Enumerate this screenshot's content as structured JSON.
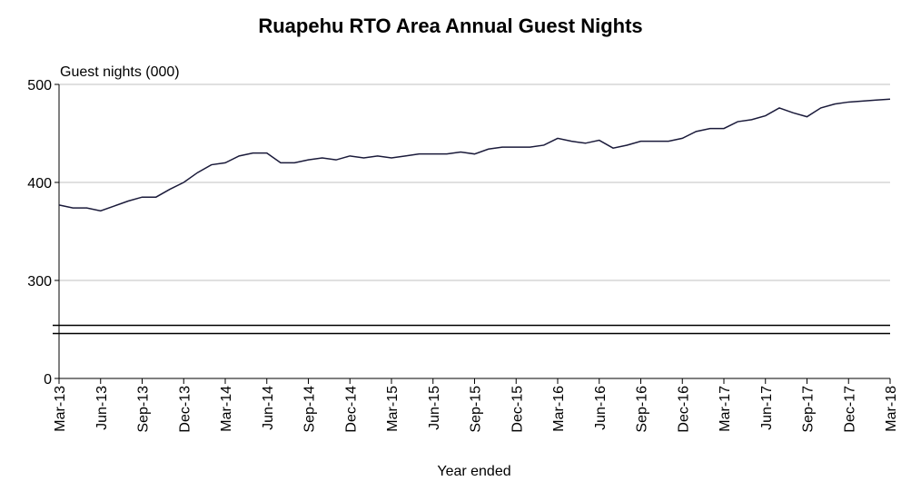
{
  "chart_data": {
    "type": "line",
    "title": "Ruapehu RTO Area Annual Guest Nights",
    "y_label": "Guest nights (000)",
    "x_label": "Year ended",
    "categories": [
      "Mar-13",
      null,
      null,
      "Jun-13",
      null,
      null,
      "Sep-13",
      null,
      null,
      "Dec-13",
      null,
      null,
      "Mar-14",
      null,
      null,
      "Jun-14",
      null,
      null,
      "Sep-14",
      null,
      null,
      "Dec-14",
      null,
      null,
      "Mar-15",
      null,
      null,
      "Jun-15",
      null,
      null,
      "Sep-15",
      null,
      null,
      "Dec-15",
      null,
      null,
      "Mar-16",
      null,
      null,
      "Jun-16",
      null,
      null,
      "Sep-16",
      null,
      null,
      "Dec-16",
      null,
      null,
      "Mar-17",
      null,
      null,
      "Jun-17",
      null,
      null,
      "Sep-17",
      null,
      null,
      "Dec-17",
      null,
      null,
      "Mar-18"
    ],
    "values": [
      377,
      374,
      374,
      371,
      376,
      381,
      385,
      385,
      393,
      400,
      410,
      418,
      420,
      427,
      430,
      430,
      420,
      420,
      423,
      425,
      423,
      427,
      425,
      427,
      425,
      427,
      429,
      429,
      429,
      431,
      429,
      434,
      436,
      436,
      436,
      438,
      445,
      442,
      440,
      443,
      435,
      438,
      442,
      442,
      442,
      445,
      452,
      455,
      455,
      462,
      464,
      468,
      476,
      471,
      467,
      476,
      480,
      482,
      483,
      484,
      485
    ],
    "color": "#1a1a3a",
    "ylim": [
      0,
      500
    ],
    "yticks": [
      0,
      300,
      400,
      500
    ],
    "axis_break": true,
    "grid": true
  }
}
